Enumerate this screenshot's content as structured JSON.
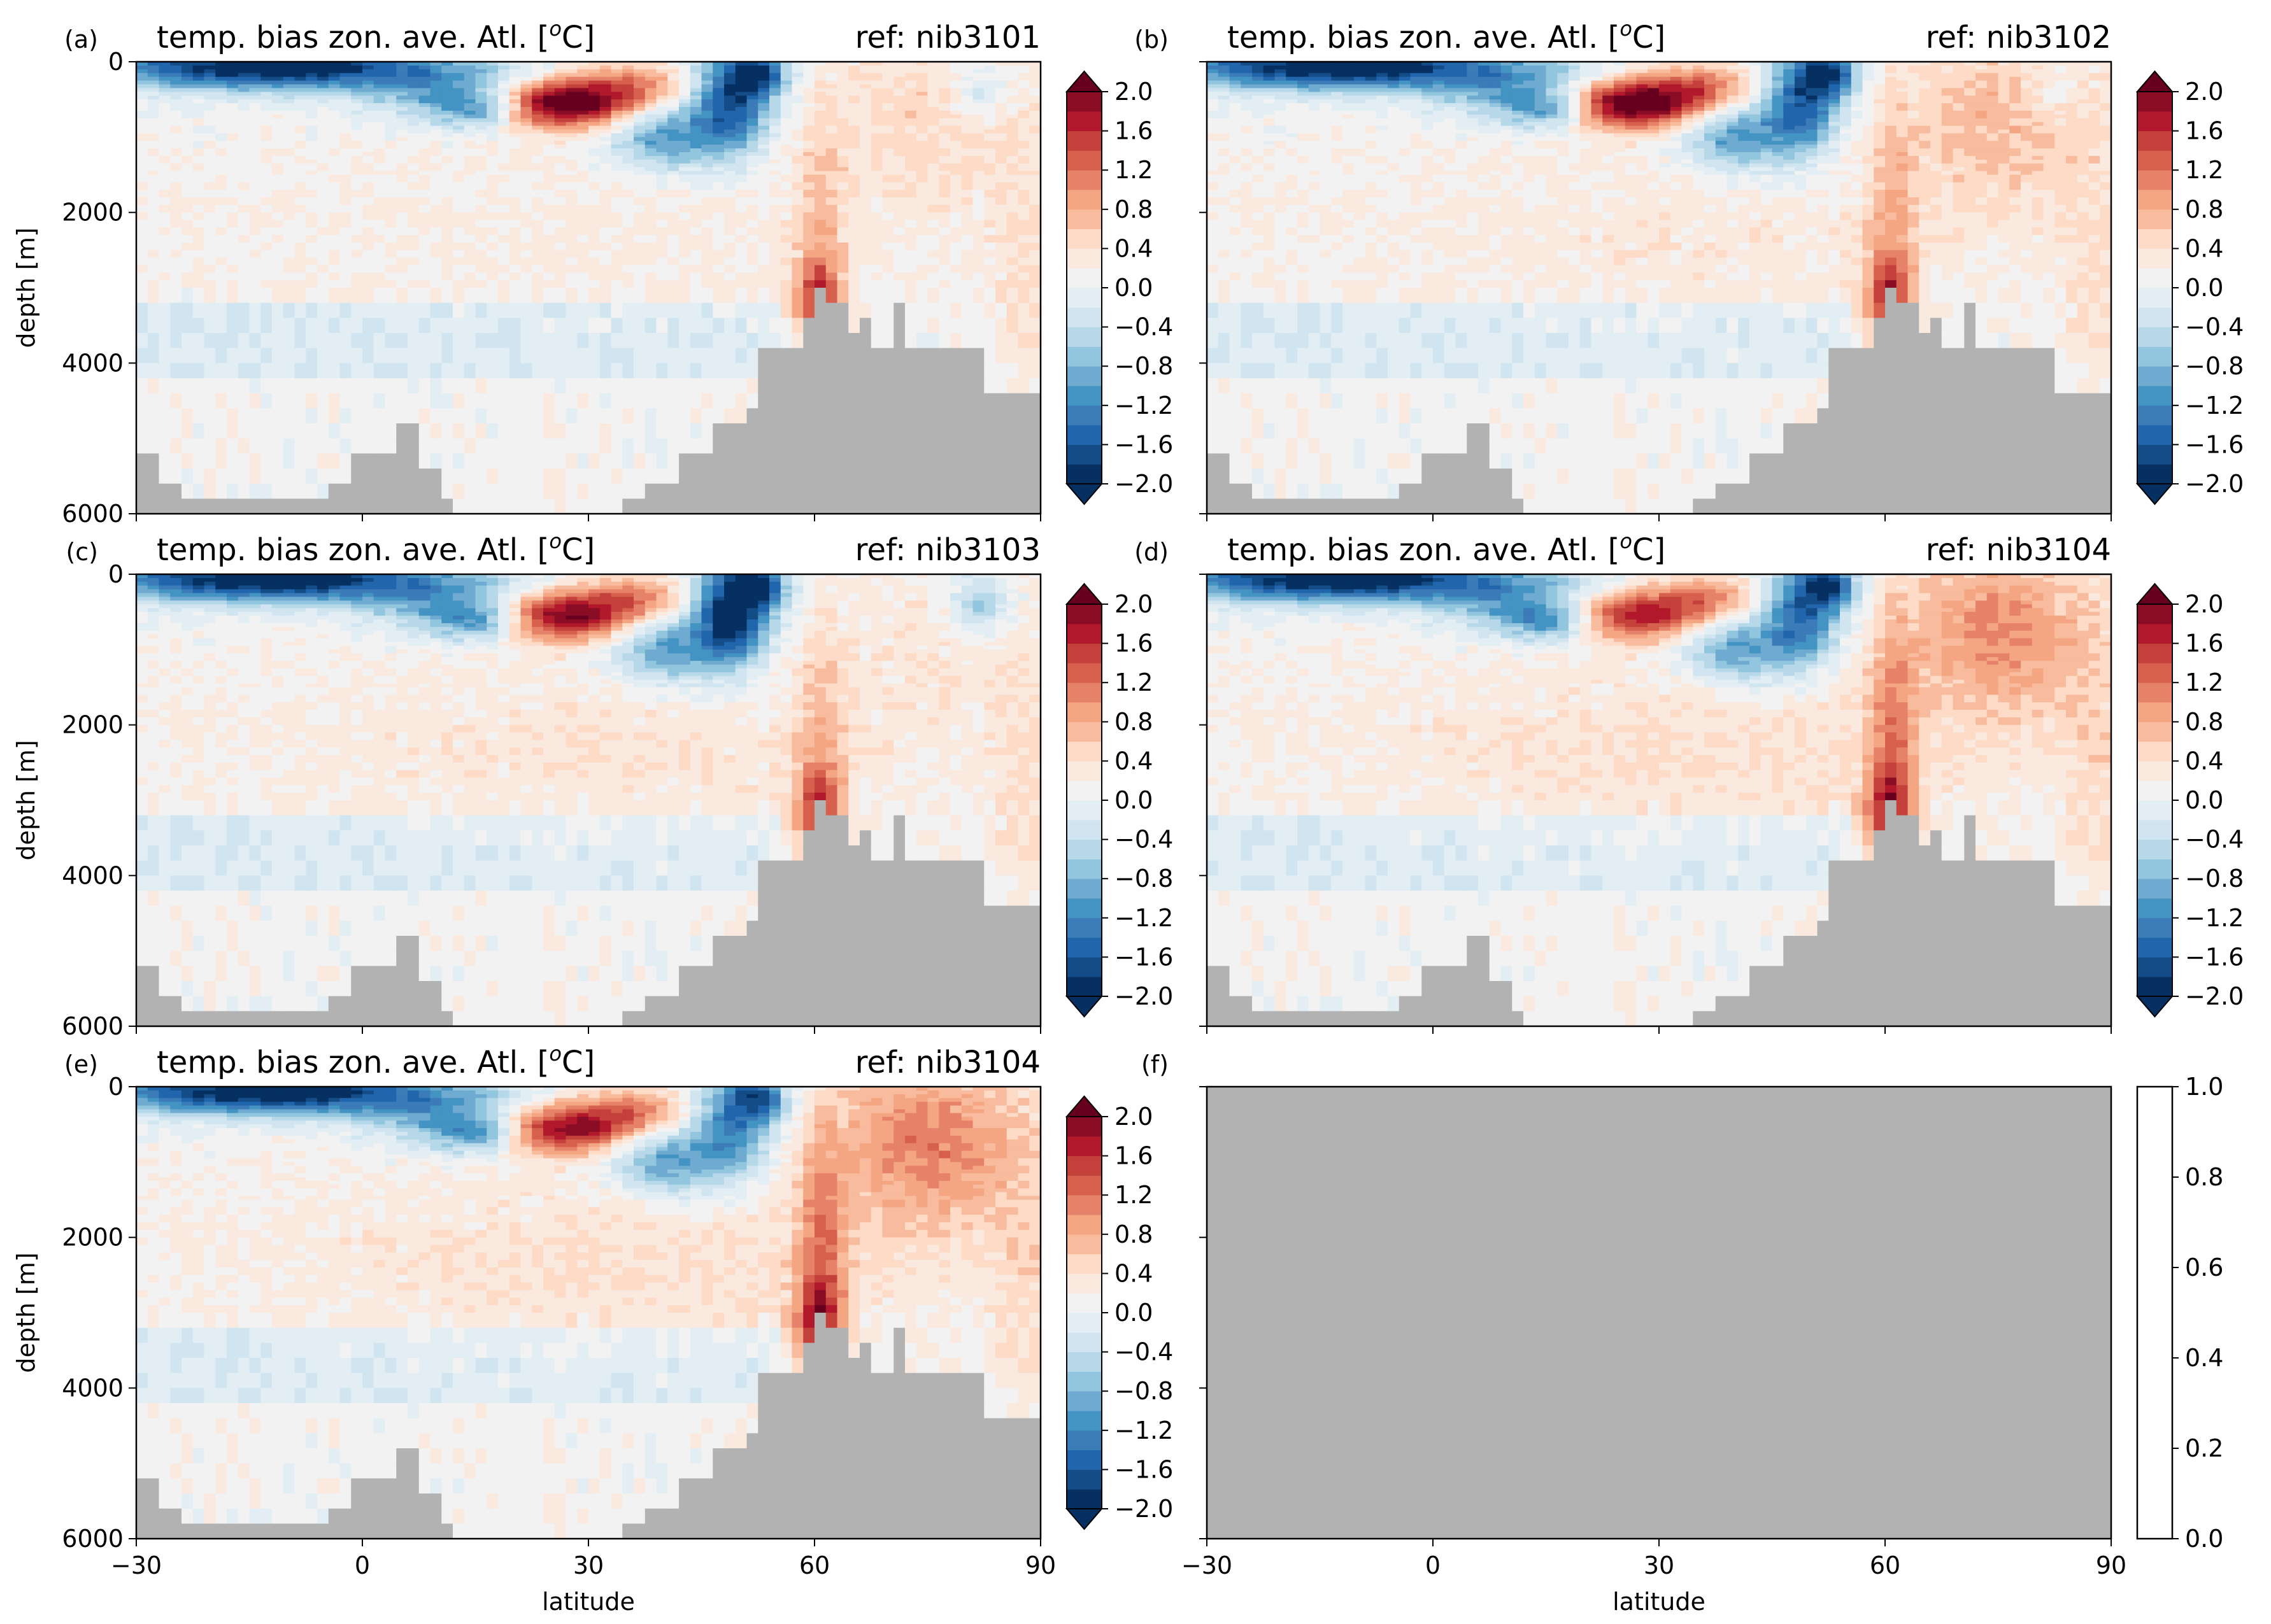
{
  "figure": {
    "colorbar_colors": [
      "#053061",
      "#134c87",
      "#2166ac",
      "#3a7bb8",
      "#4393c3",
      "#6fabd0",
      "#92c5de",
      "#b7d8e9",
      "#d1e5f0",
      "#e3eef4",
      "#f2f2f2",
      "#f9e9df",
      "#fddbc7",
      "#f8bb9d",
      "#f4a582",
      "#e6826a",
      "#d6604d",
      "#c3403b",
      "#b2182b",
      "#8a0c25",
      "#67001f"
    ],
    "land_color": "#b2b2b2"
  },
  "chart_data": [
    {
      "type": "heatmap",
      "panel_label": "(a)",
      "title": "temp. bias zon. ave. Atl. [$^o$C]",
      "title_left": "temp. bias zon. ave. Atl. [",
      "title_sup": "o",
      "title_right": "C]",
      "ref": "ref: nib3101",
      "xlabel": "",
      "ylabel": "depth [m]",
      "xlim": [
        -30,
        90
      ],
      "ylim": [
        6000,
        0
      ],
      "xticks": [
        -30,
        0,
        30,
        60,
        90
      ],
      "yticks": [
        0,
        2000,
        4000,
        6000
      ],
      "xtick_labels": [],
      "ytick_labels": [
        "0",
        "2000",
        "4000",
        "6000"
      ],
      "colorbar": {
        "min": -2.0,
        "max": 2.0,
        "extend": "both",
        "ticks": [
          "2.0",
          "1.6",
          "1.2",
          "0.8",
          "0.4",
          "0.0",
          "−0.4",
          "−0.8",
          "−1.2",
          "−1.6",
          "−2.0"
        ]
      }
    },
    {
      "type": "heatmap",
      "panel_label": "(b)",
      "title": "temp. bias zon. ave. Atl. [$^o$C]",
      "title_left": "temp. bias zon. ave. Atl. [",
      "title_sup": "o",
      "title_right": "C]",
      "ref": "ref: nib3102",
      "xlabel": "",
      "ylabel": "",
      "xlim": [
        -30,
        90
      ],
      "ylim": [
        6000,
        0
      ],
      "xticks": [
        -30,
        0,
        30,
        60,
        90
      ],
      "yticks": [
        0,
        2000,
        4000,
        6000
      ],
      "xtick_labels": [],
      "ytick_labels": [],
      "colorbar": {
        "min": -2.0,
        "max": 2.0,
        "extend": "both",
        "ticks": [
          "2.0",
          "1.6",
          "1.2",
          "0.8",
          "0.4",
          "0.0",
          "−0.4",
          "−0.8",
          "−1.2",
          "−1.6",
          "−2.0"
        ]
      }
    },
    {
      "type": "heatmap",
      "panel_label": "(c)",
      "title": "temp. bias zon. ave. Atl. [$^o$C]",
      "title_left": "temp. bias zon. ave. Atl. [",
      "title_sup": "o",
      "title_right": "C]",
      "ref": "ref: nib3103",
      "xlabel": "",
      "ylabel": "depth [m]",
      "xlim": [
        -30,
        90
      ],
      "ylim": [
        6000,
        0
      ],
      "xticks": [
        -30,
        0,
        30,
        60,
        90
      ],
      "yticks": [
        0,
        2000,
        4000,
        6000
      ],
      "xtick_labels": [],
      "ytick_labels": [
        "0",
        "2000",
        "4000",
        "6000"
      ],
      "colorbar": {
        "min": -2.0,
        "max": 2.0,
        "extend": "both",
        "ticks": [
          "2.0",
          "1.6",
          "1.2",
          "0.8",
          "0.4",
          "0.0",
          "−0.4",
          "−0.8",
          "−1.2",
          "−1.6",
          "−2.0"
        ]
      }
    },
    {
      "type": "heatmap",
      "panel_label": "(d)",
      "title": "temp. bias zon. ave. Atl. [$^o$C]",
      "title_left": "temp. bias zon. ave. Atl. [",
      "title_sup": "o",
      "title_right": "C]",
      "ref": "ref: nib3104",
      "xlabel": "",
      "ylabel": "",
      "xlim": [
        -30,
        90
      ],
      "ylim": [
        6000,
        0
      ],
      "xticks": [
        -30,
        0,
        30,
        60,
        90
      ],
      "yticks": [
        0,
        2000,
        4000,
        6000
      ],
      "xtick_labels": [],
      "ytick_labels": [],
      "colorbar": {
        "min": -2.0,
        "max": 2.0,
        "extend": "both",
        "ticks": [
          "2.0",
          "1.6",
          "1.2",
          "0.8",
          "0.4",
          "0.0",
          "−0.4",
          "−0.8",
          "−1.2",
          "−1.6",
          "−2.0"
        ]
      }
    },
    {
      "type": "heatmap",
      "panel_label": "(e)",
      "title": "temp. bias zon. ave. Atl. [$^o$C]",
      "title_left": "temp. bias zon. ave. Atl. [",
      "title_sup": "o",
      "title_right": "C]",
      "ref": "ref: nib3104",
      "xlabel": "latitude",
      "ylabel": "depth [m]",
      "xlim": [
        -30,
        90
      ],
      "ylim": [
        6000,
        0
      ],
      "xticks": [
        -30,
        0,
        30,
        60,
        90
      ],
      "yticks": [
        0,
        2000,
        4000,
        6000
      ],
      "xtick_labels": [
        "−30",
        "0",
        "30",
        "60",
        "90"
      ],
      "ytick_labels": [
        "0",
        "2000",
        "4000",
        "6000"
      ],
      "colorbar": {
        "min": -2.0,
        "max": 2.0,
        "extend": "both",
        "ticks": [
          "2.0",
          "1.6",
          "1.2",
          "0.8",
          "0.4",
          "0.0",
          "−0.4",
          "−0.8",
          "−1.2",
          "−1.6",
          "−2.0"
        ]
      }
    },
    {
      "type": "heatmap",
      "panel_label": "(f)",
      "title": "",
      "title_left": "",
      "title_sup": "",
      "title_right": "",
      "ref": "",
      "xlabel": "latitude",
      "ylabel": "",
      "xlim": [
        -30,
        90
      ],
      "ylim": [
        6000,
        0
      ],
      "xticks": [
        -30,
        0,
        30,
        60,
        90
      ],
      "yticks": [
        0,
        2000,
        4000,
        6000
      ],
      "xtick_labels": [
        "−30",
        "0",
        "30",
        "60",
        "90"
      ],
      "ytick_labels": [],
      "empty": true,
      "colorbar": {
        "min": 0.0,
        "max": 1.0,
        "extend": "neither",
        "ticks": [
          "1.0",
          "0.8",
          "0.6",
          "0.4",
          "0.2",
          "0.0"
        ]
      }
    }
  ]
}
